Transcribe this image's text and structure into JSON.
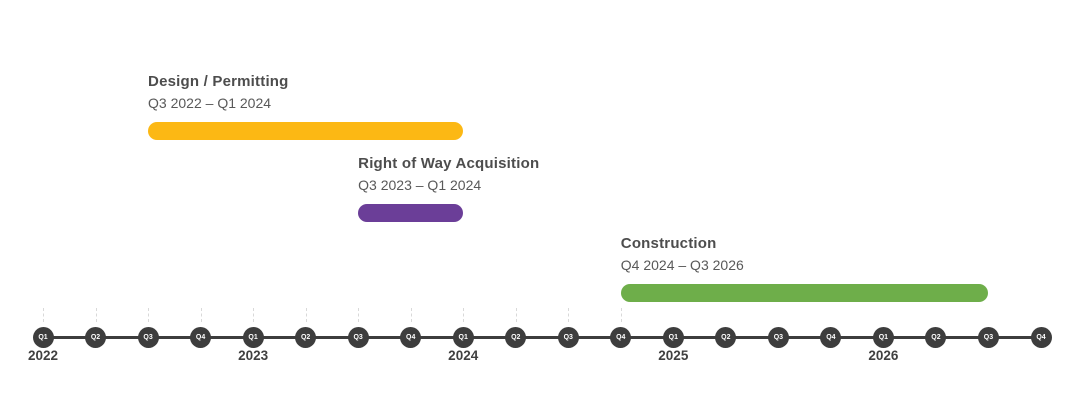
{
  "page": {
    "background": "#ffffff"
  },
  "chart_data": {
    "type": "bar",
    "subtype": "gantt-quarter-timeline",
    "title": "",
    "tasks": [
      {
        "name": "Design / Permitting",
        "date_range_label": "Q3 2022 – Q1 2024",
        "start": "Q3 2022",
        "end": "Q1 2024",
        "color": "#FCB814"
      },
      {
        "name": "Right of Way Acquisition",
        "date_range_label": "Q3 2023 – Q1 2024",
        "start": "Q3 2023",
        "end": "Q1 2024",
        "color": "#6B3E98"
      },
      {
        "name": "Construction",
        "date_range_label": "Q4 2024 – Q3 2026",
        "start": "Q4 2024",
        "end": "Q3 2026",
        "color": "#6EAE4A"
      }
    ],
    "timeline": {
      "start_year": 2022,
      "years": [
        "2022",
        "2023",
        "2024",
        "2025",
        "2026"
      ],
      "quarter_labels": [
        "Q1",
        "Q2",
        "Q3",
        "Q4"
      ],
      "num_quarters": 20,
      "range": [
        "Q1 2022",
        "Q4 2026"
      ],
      "ticks_visible_through": "Q4 2024"
    },
    "colors": {
      "axis": "#3d3d3d",
      "node_fill": "#3d3d3d",
      "node_text": "#ffffff",
      "tick": "#d9d9d9",
      "task_title": "#4d4d4d",
      "task_subtitle": "#595959",
      "year_label": "#404040"
    }
  }
}
